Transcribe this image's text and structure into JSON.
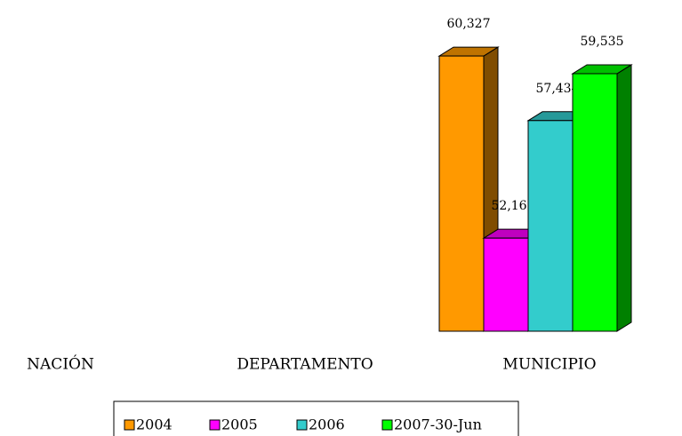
{
  "chart_data": {
    "type": "bar3d",
    "categories": [
      "NACIÓN",
      "DEPARTAMENTO",
      "MUNICIPIO"
    ],
    "series": [
      {
        "name": "2004",
        "color": "#ff9900",
        "values": [
          null,
          null,
          60327
        ],
        "value_labels": [
          null,
          null,
          "60,327"
        ]
      },
      {
        "name": "2005",
        "color": "#ff00ff",
        "values": [
          null,
          null,
          52169
        ],
        "value_labels": [
          null,
          null,
          "52,169"
        ]
      },
      {
        "name": "2006",
        "color": "#33cccc",
        "values": [
          null,
          null,
          57434
        ],
        "value_labels": [
          null,
          null,
          "57,434"
        ]
      },
      {
        "name": "2007-30-Jun",
        "color": "#00ff00",
        "values": [
          null,
          null,
          59535
        ],
        "value_labels": [
          null,
          null,
          "59,535"
        ]
      }
    ],
    "ylim": [
      48000,
      62000
    ],
    "legend": "bottom"
  }
}
